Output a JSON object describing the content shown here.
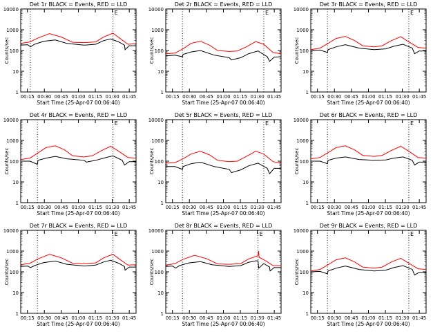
{
  "figure": {
    "ylabel": "Counts/sec",
    "xlabel": "Start Time (25-Apr-07 00:06:40)",
    "ytick_labels": [
      "1",
      "10",
      "100",
      "1000",
      "10000"
    ],
    "xtick_labels": [
      "00:15",
      "00:30",
      "00:45",
      "01:00",
      "01:15",
      "01:30",
      "01:45"
    ],
    "corner_marker": "E",
    "colors": {
      "events": "#000000",
      "lld": "#ff0000",
      "axes": "#000000",
      "background": "#ffffff"
    }
  },
  "chart_data": [
    {
      "type": "line",
      "title": "Det 1r BLACK = Events, RED = LLD",
      "xlabel": "Start Time (25-Apr-07 00:06:40)",
      "ylabel": "Counts/sec",
      "x_unit": "minutes since 00:06:40",
      "xlim": [
        0,
        100
      ],
      "ylim": [
        1,
        10000
      ],
      "yscale": "log",
      "dotted_lines_x": [
        8.3,
        80
      ],
      "series": [
        {
          "name": "Events",
          "x": [
            0,
            6,
            8.5,
            12,
            20,
            30,
            40,
            55,
            65,
            72,
            78,
            85,
            90,
            90.5,
            94,
            100
          ],
          "values": [
            180,
            190,
            150,
            200,
            280,
            320,
            220,
            180,
            200,
            300,
            360,
            260,
            180,
            110,
            170,
            170
          ]
        },
        {
          "name": "LLD",
          "x": [
            0,
            8,
            15,
            25,
            35,
            45,
            55,
            65,
            72,
            80,
            87,
            93,
            100
          ],
          "values": [
            220,
            260,
            400,
            650,
            450,
            250,
            240,
            260,
            450,
            680,
            350,
            200,
            210
          ]
        }
      ]
    },
    {
      "type": "line",
      "title": "Det 2r BLACK = Events, RED = LLD",
      "xlabel": "Start Time (25-Apr-07 00:06:40)",
      "ylabel": "Counts/sec",
      "x_unit": "minutes since 00:06:40",
      "xlim": [
        0,
        100
      ],
      "ylim": [
        1,
        10000
      ],
      "yscale": "log",
      "dotted_lines_x": [
        14.5,
        85
      ],
      "series": [
        {
          "name": "Events",
          "x": [
            0,
            8,
            14.5,
            15,
            22,
            30,
            42,
            55,
            57,
            65,
            72,
            80,
            88,
            90,
            94,
            100
          ],
          "values": [
            55,
            60,
            50,
            65,
            85,
            100,
            60,
            45,
            35,
            45,
            70,
            95,
            50,
            30,
            48,
            50
          ]
        },
        {
          "name": "LLD",
          "x": [
            0,
            8,
            15,
            22,
            30,
            38,
            45,
            55,
            62,
            70,
            78,
            85,
            93,
            100
          ],
          "values": [
            70,
            75,
            120,
            220,
            280,
            180,
            100,
            90,
            95,
            150,
            270,
            200,
            80,
            70
          ]
        }
      ]
    },
    {
      "type": "line",
      "title": "Det 3r BLACK = Events, RED = LLD",
      "xlabel": "Start Time (25-Apr-07 00:06:40)",
      "ylabel": "Counts/sec",
      "x_unit": "minutes since 00:06:40",
      "xlim": [
        0,
        100
      ],
      "ylim": [
        1,
        10000
      ],
      "yscale": "log",
      "dotted_lines_x": [
        14.5,
        85
      ],
      "series": [
        {
          "name": "Events",
          "x": [
            0,
            8,
            14.5,
            15,
            22,
            30,
            42,
            55,
            65,
            72,
            80,
            88,
            90,
            94,
            100
          ],
          "values": [
            100,
            105,
            80,
            110,
            150,
            190,
            130,
            110,
            120,
            160,
            200,
            130,
            70,
            95,
            95
          ]
        },
        {
          "name": "LLD",
          "x": [
            0,
            8,
            15,
            22,
            30,
            38,
            45,
            55,
            62,
            70,
            78,
            85,
            93,
            100
          ],
          "values": [
            110,
            130,
            220,
            380,
            480,
            300,
            170,
            150,
            170,
            300,
            460,
            260,
            140,
            130
          ]
        }
      ]
    },
    {
      "type": "line",
      "title": "Det 4r BLACK = Events, RED = LLD",
      "xlabel": "Start Time (25-Apr-07 00:06:40)",
      "ylabel": "Counts/sec",
      "x_unit": "minutes since 00:06:40",
      "xlim": [
        0,
        100
      ],
      "ylim": [
        1,
        10000
      ],
      "yscale": "log",
      "dotted_lines_x": [
        14.5,
        80
      ],
      "series": [
        {
          "name": "Events",
          "x": [
            0,
            8,
            14.5,
            15,
            22,
            30,
            40,
            55,
            57,
            65,
            72,
            80,
            88,
            90,
            94,
            100
          ],
          "values": [
            100,
            100,
            70,
            110,
            140,
            170,
            130,
            110,
            90,
            110,
            140,
            180,
            110,
            65,
            95,
            95
          ]
        },
        {
          "name": "LLD",
          "x": [
            0,
            8,
            15,
            22,
            30,
            38,
            45,
            55,
            62,
            70,
            78,
            85,
            93,
            100
          ],
          "values": [
            120,
            140,
            250,
            450,
            550,
            350,
            180,
            160,
            180,
            320,
            520,
            300,
            150,
            140
          ]
        }
      ]
    },
    {
      "type": "line",
      "title": "Det 5r BLACK = Events, RED = LLD",
      "xlabel": "Start Time (25-Apr-07 00:06:40)",
      "ylabel": "Counts/sec",
      "x_unit": "minutes since 00:06:40",
      "xlim": [
        0,
        100
      ],
      "ylim": [
        1,
        10000
      ],
      "yscale": "log",
      "dotted_lines_x": [
        14.5,
        85
      ],
      "series": [
        {
          "name": "Events",
          "x": [
            0,
            8,
            14.5,
            15,
            22,
            30,
            42,
            55,
            57,
            65,
            72,
            80,
            88,
            90,
            94,
            100
          ],
          "values": [
            55,
            55,
            40,
            55,
            75,
            90,
            55,
            40,
            28,
            38,
            60,
            80,
            45,
            25,
            45,
            45
          ]
        },
        {
          "name": "LLD",
          "x": [
            0,
            8,
            15,
            22,
            30,
            38,
            45,
            55,
            62,
            70,
            78,
            85,
            93,
            100
          ],
          "values": [
            80,
            85,
            130,
            220,
            300,
            200,
            110,
            95,
            100,
            170,
            300,
            220,
            95,
            80
          ]
        }
      ]
    },
    {
      "type": "line",
      "title": "Det 6r BLACK = Events, RED = LLD",
      "xlabel": "Start Time (25-Apr-07 00:06:40)",
      "ylabel": "Counts/sec",
      "x_unit": "minutes since 00:06:40",
      "xlim": [
        0,
        100
      ],
      "ylim": [
        1,
        10000
      ],
      "yscale": "log",
      "dotted_lines_x": [
        14.5,
        85
      ],
      "series": [
        {
          "name": "Events",
          "x": [
            0,
            8,
            14.5,
            15,
            22,
            30,
            42,
            55,
            65,
            72,
            80,
            88,
            90,
            94,
            100
          ],
          "values": [
            100,
            100,
            75,
            110,
            140,
            160,
            120,
            110,
            115,
            140,
            160,
            110,
            65,
            90,
            90
          ]
        },
        {
          "name": "LLD",
          "x": [
            0,
            8,
            15,
            22,
            30,
            38,
            45,
            55,
            62,
            70,
            78,
            85,
            93,
            100
          ],
          "values": [
            130,
            150,
            260,
            450,
            550,
            350,
            190,
            170,
            190,
            330,
            520,
            300,
            150,
            140
          ]
        }
      ]
    },
    {
      "type": "line",
      "title": "Det 7r BLACK = Events, RED = LLD",
      "xlabel": "Start Time (25-Apr-07 00:06:40)",
      "ylabel": "Counts/sec",
      "x_unit": "minutes since 00:06:40",
      "xlim": [
        0,
        100
      ],
      "ylim": [
        1,
        10000
      ],
      "yscale": "log",
      "dotted_lines_x": [
        14.5,
        80
      ],
      "series": [
        {
          "name": "Events",
          "x": [
            0,
            6,
            8.5,
            12,
            20,
            30,
            40,
            55,
            65,
            72,
            78,
            85,
            90,
            90.5,
            94,
            100
          ],
          "values": [
            180,
            190,
            160,
            200,
            280,
            330,
            230,
            190,
            210,
            300,
            360,
            260,
            180,
            120,
            170,
            170
          ]
        },
        {
          "name": "LLD",
          "x": [
            0,
            8,
            15,
            25,
            35,
            45,
            55,
            65,
            72,
            80,
            87,
            93,
            100
          ],
          "values": [
            220,
            260,
            420,
            700,
            480,
            260,
            250,
            270,
            470,
            700,
            360,
            210,
            220
          ]
        }
      ]
    },
    {
      "type": "line",
      "title": "Det 8r BLACK = Events, RED = LLD",
      "xlabel": "Start Time (25-Apr-07 00:06:40)",
      "ylabel": "Counts/sec",
      "x_unit": "minutes since 00:06:40",
      "xlim": [
        0,
        100
      ],
      "ylim": [
        1,
        10000
      ],
      "yscale": "log",
      "dotted_lines_x": [
        14.5,
        80
      ],
      "series": [
        {
          "name": "Events",
          "x": [
            0,
            6,
            8.5,
            12,
            20,
            30,
            40,
            55,
            65,
            72,
            78,
            80,
            80.6,
            85,
            90,
            90.5,
            94,
            100
          ],
          "values": [
            180,
            190,
            150,
            200,
            270,
            310,
            220,
            180,
            200,
            290,
            340,
            340,
            150,
            250,
            170,
            110,
            160,
            160
          ]
        },
        {
          "name": "LLD",
          "x": [
            0,
            8,
            15,
            25,
            35,
            45,
            55,
            65,
            72,
            80,
            80.5,
            81,
            87,
            93,
            100
          ],
          "values": [
            210,
            250,
            400,
            620,
            440,
            240,
            230,
            250,
            420,
            600,
            1000,
            500,
            330,
            200,
            200
          ]
        }
      ]
    },
    {
      "type": "line",
      "title": "Det 9r BLACK = Events, RED = LLD",
      "xlabel": "Start Time (25-Apr-07 00:06:40)",
      "ylabel": "Counts/sec",
      "x_unit": "minutes since 00:06:40",
      "xlim": [
        0,
        100
      ],
      "ylim": [
        1,
        10000
      ],
      "yscale": "log",
      "dotted_lines_x": [
        14.5,
        85
      ],
      "series": [
        {
          "name": "Events",
          "x": [
            0,
            8,
            14.5,
            15,
            22,
            30,
            42,
            55,
            65,
            72,
            80,
            88,
            90,
            94,
            100
          ],
          "values": [
            100,
            105,
            80,
            110,
            150,
            190,
            130,
            110,
            120,
            160,
            200,
            130,
            70,
            95,
            95
          ]
        },
        {
          "name": "LLD",
          "x": [
            0,
            8,
            15,
            22,
            30,
            38,
            45,
            55,
            62,
            70,
            78,
            85,
            93,
            100
          ],
          "values": [
            110,
            130,
            220,
            380,
            470,
            300,
            170,
            150,
            170,
            300,
            450,
            260,
            140,
            130
          ]
        }
      ]
    }
  ]
}
